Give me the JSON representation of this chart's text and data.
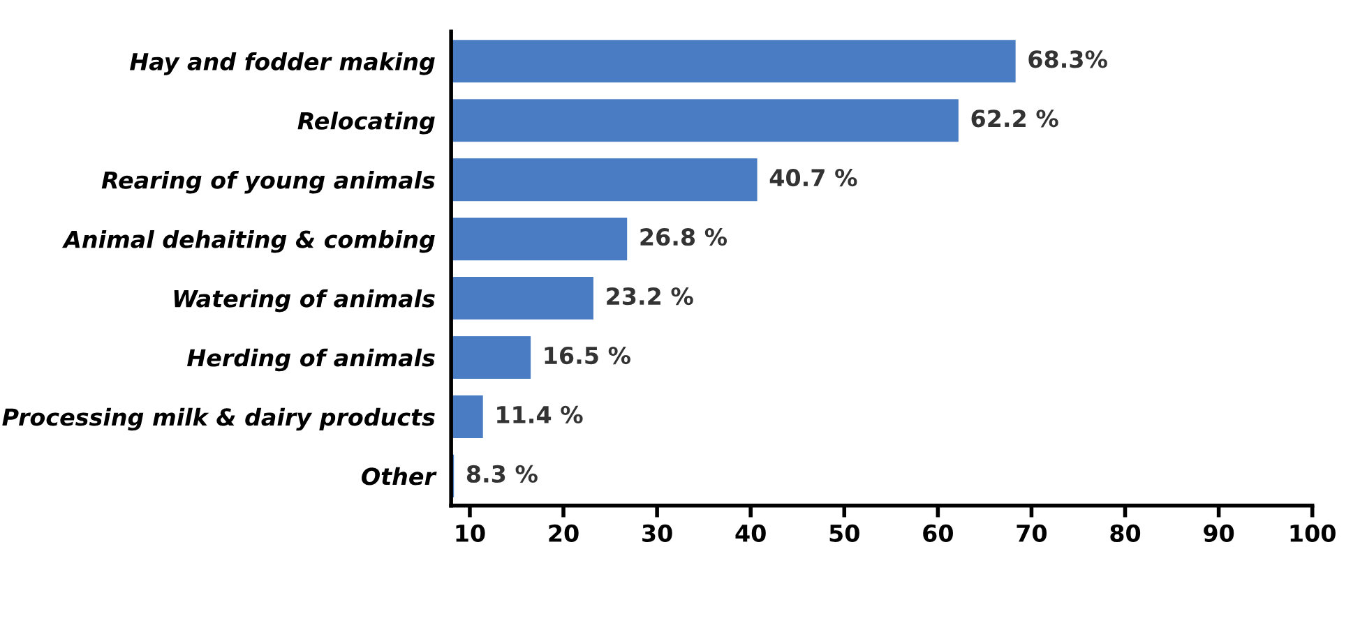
{
  "chart_data": {
    "type": "bar",
    "orientation": "horizontal",
    "categories": [
      "Hay and fodder making",
      "Relocating",
      "Rearing of young animals",
      "Animal dehaiting & combing",
      "Watering of animals",
      "Herding of animals",
      "Processing milk & dairy products",
      "Other"
    ],
    "values": [
      68.3,
      62.2,
      40.7,
      26.8,
      23.2,
      16.5,
      11.4,
      8.3
    ],
    "value_labels": [
      "68.3%",
      "62.2 %",
      "40.7 %",
      "26.8 %",
      "23.2 %",
      "16.5 %",
      "11.4 %",
      "8.3 %"
    ],
    "color": "#4a7cc4",
    "xlim": [
      8,
      100
    ],
    "xticks": [
      10,
      20,
      30,
      40,
      50,
      60,
      70,
      80,
      90,
      100
    ],
    "grid": false,
    "legend": false
  }
}
